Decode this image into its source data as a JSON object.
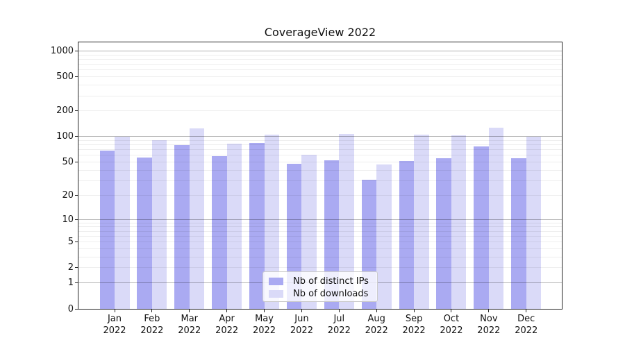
{
  "title": "CoverageView 2022",
  "chart_data": {
    "type": "bar",
    "title": "CoverageView 2022",
    "xlabel": "",
    "ylabel": "",
    "x_axis": {
      "categories": [
        "Jan 2022",
        "Feb 2022",
        "Mar 2022",
        "Apr 2022",
        "May 2022",
        "Jun 2022",
        "Jul 2022",
        "Aug 2022",
        "Sep 2022",
        "Oct 2022",
        "Nov 2022",
        "Dec 2022"
      ]
    },
    "y_axis": {
      "scale": "log(value+1)",
      "ticks": [
        0,
        1,
        2,
        5,
        10,
        20,
        50,
        100,
        200,
        500,
        1000
      ],
      "range_top": 1257,
      "grid": true
    },
    "series": [
      {
        "name": "Nb of distinct IPs",
        "color": "#aaaaf2",
        "values": [
          68,
          57,
          80,
          59,
          84,
          48,
          52,
          31,
          51,
          55,
          77,
          56
        ]
      },
      {
        "name": "Nb of downloads",
        "color": "#dadaf8",
        "values": [
          100,
          90,
          125,
          82,
          106,
          61,
          107,
          47,
          106,
          103,
          128,
          100
        ]
      }
    ],
    "legend": {
      "position": "lower center",
      "entries": [
        "Nb of distinct IPs",
        "Nb of downloads"
      ]
    }
  },
  "colors": {
    "bar_distinct_ips": "#aaaaf2",
    "bar_downloads": "#dadaf8",
    "grid_major": "#b0b0b0",
    "grid_minor": "#eeeeee",
    "axis_frame": "#222222",
    "text": "#111111",
    "background": "#ffffff"
  }
}
